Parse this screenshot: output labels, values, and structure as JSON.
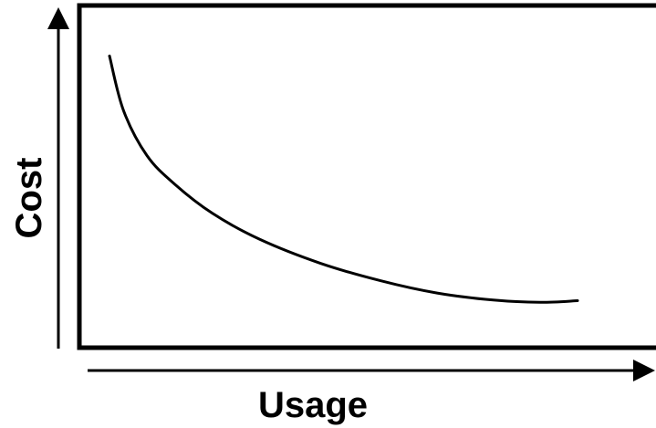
{
  "chart_data": {
    "type": "line",
    "title": "",
    "xlabel": "Usage",
    "ylabel": "Cost",
    "xlim": [
      0,
      100
    ],
    "ylim": [
      0,
      100
    ],
    "grid": false,
    "legend": "none",
    "series": [
      {
        "x": [
          0,
          3,
          8,
          14,
          22,
          32,
          45,
          58,
          70,
          82,
          92,
          100
        ],
        "y": [
          84,
          67,
          53,
          44,
          35,
          27,
          19.5,
          14,
          10.2,
          8,
          7.3,
          7.8
        ]
      }
    ],
    "colors": {
      "line": "#000000",
      "frame": "#000000",
      "axis": "#000000",
      "background": "#ffffff"
    }
  }
}
